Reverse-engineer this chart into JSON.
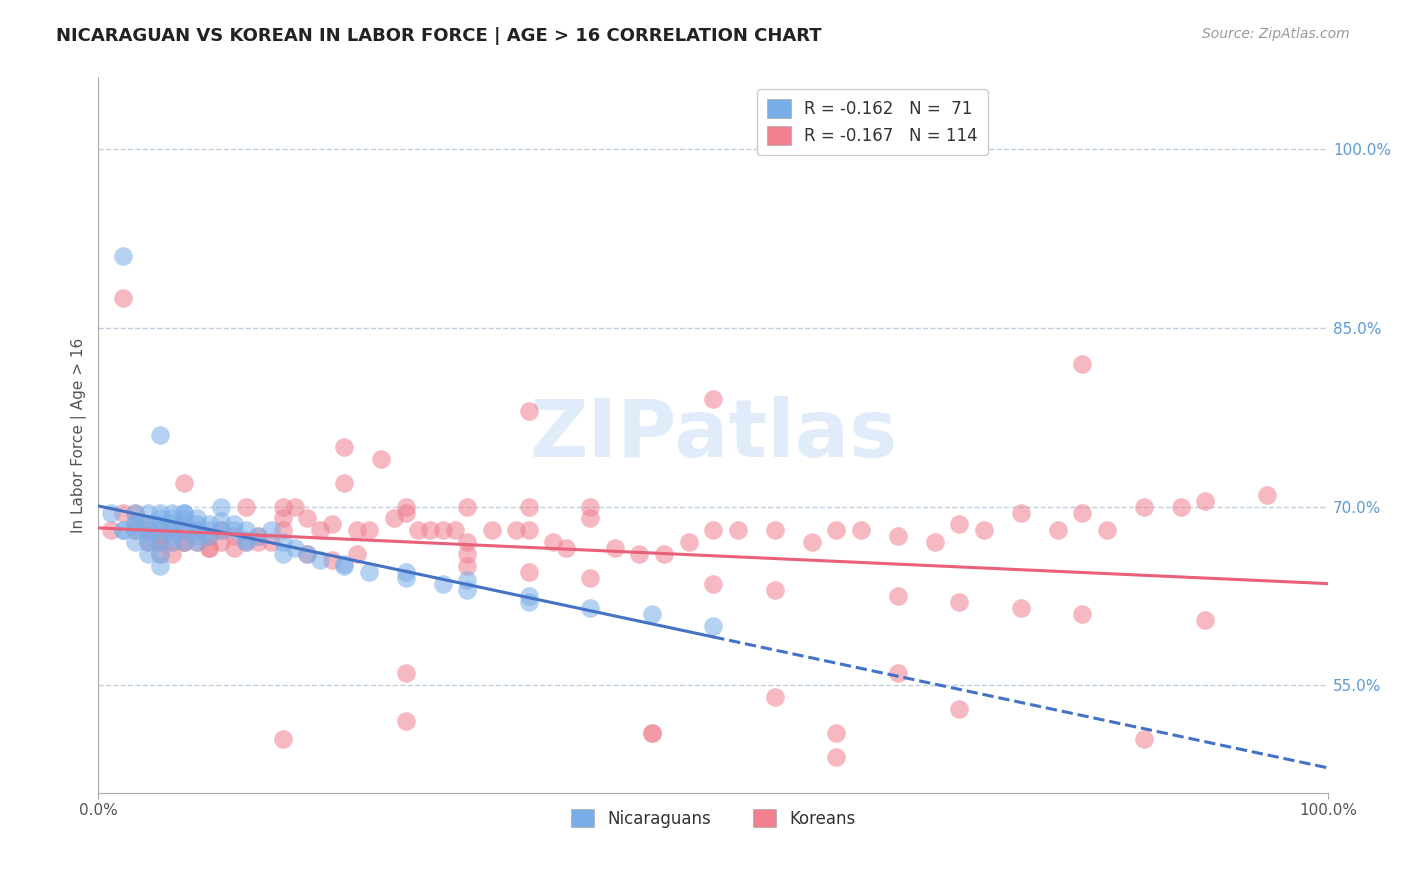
{
  "title": "NICARAGUAN VS KOREAN IN LABOR FORCE | AGE > 16 CORRELATION CHART",
  "source": "Source: ZipAtlas.com",
  "ylabel": "In Labor Force | Age > 16",
  "xlim": [
    0.0,
    1.0
  ],
  "ylim": [
    0.46,
    1.06
  ],
  "yticks": [
    0.55,
    0.7,
    0.85,
    1.0
  ],
  "ytick_labels": [
    "55.0%",
    "70.0%",
    "85.0%",
    "100.0%"
  ],
  "nicaraguan_R": -0.162,
  "nicaraguan_N": 71,
  "korean_R": -0.167,
  "korean_N": 114,
  "blue_color": "#7aaee8",
  "pink_color": "#f08090",
  "blue_line_color": "#4472c4",
  "pink_line_color": "#e8607a",
  "background_color": "#ffffff",
  "grid_color": "#c0d0e0",
  "right_ytick_color": "#5b9bd5",
  "nicaraguan_x": [
    0.01,
    0.02,
    0.02,
    0.03,
    0.03,
    0.03,
    0.03,
    0.04,
    0.04,
    0.04,
    0.04,
    0.04,
    0.05,
    0.05,
    0.05,
    0.05,
    0.05,
    0.05,
    0.05,
    0.06,
    0.06,
    0.06,
    0.06,
    0.06,
    0.07,
    0.07,
    0.07,
    0.07,
    0.07,
    0.08,
    0.08,
    0.08,
    0.08,
    0.09,
    0.09,
    0.09,
    0.1,
    0.1,
    0.11,
    0.11,
    0.12,
    0.12,
    0.13,
    0.14,
    0.15,
    0.16,
    0.17,
    0.18,
    0.2,
    0.22,
    0.25,
    0.28,
    0.3,
    0.35,
    0.4,
    0.45,
    0.5,
    0.02,
    0.03,
    0.04,
    0.05,
    0.06,
    0.07,
    0.08,
    0.1,
    0.12,
    0.15,
    0.2,
    0.25,
    0.3,
    0.35
  ],
  "nicaraguan_y": [
    0.695,
    0.91,
    0.68,
    0.695,
    0.685,
    0.68,
    0.67,
    0.695,
    0.685,
    0.68,
    0.67,
    0.66,
    0.76,
    0.695,
    0.685,
    0.68,
    0.67,
    0.66,
    0.65,
    0.695,
    0.685,
    0.68,
    0.675,
    0.67,
    0.695,
    0.69,
    0.685,
    0.68,
    0.67,
    0.69,
    0.685,
    0.68,
    0.67,
    0.685,
    0.68,
    0.675,
    0.7,
    0.68,
    0.68,
    0.685,
    0.68,
    0.67,
    0.675,
    0.68,
    0.67,
    0.665,
    0.66,
    0.655,
    0.65,
    0.645,
    0.64,
    0.635,
    0.63,
    0.62,
    0.615,
    0.61,
    0.6,
    0.68,
    0.685,
    0.675,
    0.69,
    0.69,
    0.695,
    0.675,
    0.688,
    0.672,
    0.66,
    0.652,
    0.645,
    0.638,
    0.625
  ],
  "korean_x": [
    0.01,
    0.02,
    0.02,
    0.03,
    0.03,
    0.04,
    0.04,
    0.04,
    0.05,
    0.05,
    0.05,
    0.05,
    0.06,
    0.06,
    0.06,
    0.07,
    0.07,
    0.07,
    0.08,
    0.08,
    0.09,
    0.09,
    0.1,
    0.1,
    0.11,
    0.12,
    0.12,
    0.13,
    0.14,
    0.15,
    0.15,
    0.16,
    0.17,
    0.18,
    0.19,
    0.2,
    0.21,
    0.22,
    0.23,
    0.24,
    0.25,
    0.26,
    0.27,
    0.28,
    0.29,
    0.3,
    0.32,
    0.34,
    0.35,
    0.37,
    0.38,
    0.4,
    0.42,
    0.44,
    0.46,
    0.48,
    0.5,
    0.52,
    0.55,
    0.58,
    0.6,
    0.62,
    0.65,
    0.68,
    0.7,
    0.72,
    0.75,
    0.78,
    0.8,
    0.82,
    0.85,
    0.88,
    0.9,
    0.95,
    0.03,
    0.05,
    0.07,
    0.09,
    0.11,
    0.13,
    0.15,
    0.17,
    0.19,
    0.21,
    0.25,
    0.3,
    0.35,
    0.4,
    0.45,
    0.5,
    0.55,
    0.6,
    0.65,
    0.7,
    0.75,
    0.8,
    0.85,
    0.9,
    0.35,
    0.2,
    0.25,
    0.3,
    0.55,
    0.35,
    0.15,
    0.4,
    0.6,
    0.3,
    0.45,
    0.5,
    0.65,
    0.25,
    0.7,
    0.8
  ],
  "korean_y": [
    0.68,
    0.875,
    0.695,
    0.695,
    0.685,
    0.685,
    0.68,
    0.67,
    0.68,
    0.675,
    0.67,
    0.66,
    0.68,
    0.67,
    0.66,
    0.72,
    0.68,
    0.67,
    0.68,
    0.67,
    0.675,
    0.665,
    0.68,
    0.67,
    0.675,
    0.7,
    0.67,
    0.675,
    0.67,
    0.7,
    0.68,
    0.7,
    0.69,
    0.68,
    0.685,
    0.75,
    0.68,
    0.68,
    0.74,
    0.69,
    0.695,
    0.68,
    0.68,
    0.68,
    0.68,
    0.67,
    0.68,
    0.68,
    0.68,
    0.67,
    0.665,
    0.69,
    0.665,
    0.66,
    0.66,
    0.67,
    0.68,
    0.68,
    0.68,
    0.67,
    0.68,
    0.68,
    0.675,
    0.67,
    0.685,
    0.68,
    0.695,
    0.68,
    0.695,
    0.68,
    0.7,
    0.7,
    0.705,
    0.71,
    0.68,
    0.67,
    0.67,
    0.665,
    0.665,
    0.67,
    0.505,
    0.66,
    0.655,
    0.66,
    0.56,
    0.65,
    0.645,
    0.64,
    0.51,
    0.635,
    0.63,
    0.51,
    0.625,
    0.62,
    0.615,
    0.61,
    0.505,
    0.605,
    0.78,
    0.72,
    0.7,
    0.7,
    0.54,
    0.7,
    0.69,
    0.7,
    0.49,
    0.66,
    0.51,
    0.79,
    0.56,
    0.52,
    0.53,
    0.82
  ]
}
